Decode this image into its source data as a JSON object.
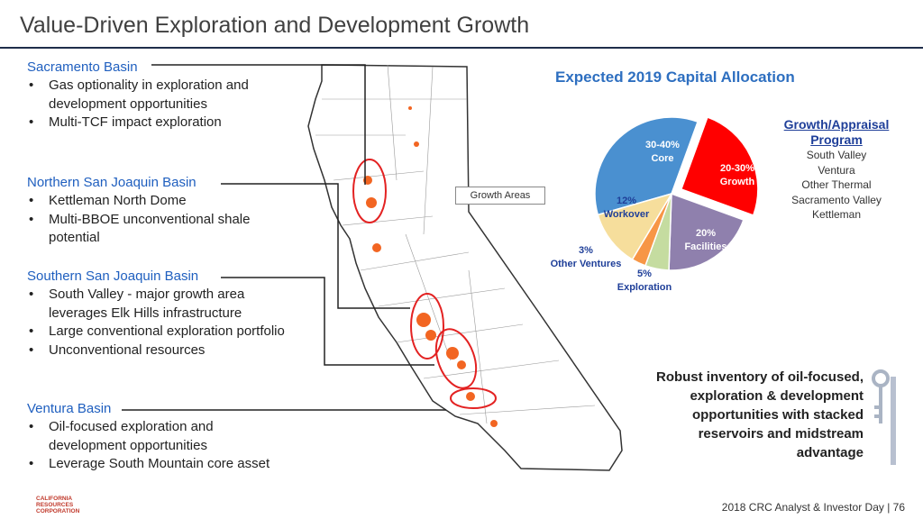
{
  "header": {
    "title": "Value-Driven Exploration and Development Growth"
  },
  "basins": [
    {
      "name": "Sacramento Basin",
      "bullets": [
        "Gas optionality in exploration and development opportunities",
        "Multi-TCF impact exploration"
      ]
    },
    {
      "name": "Northern San Joaquin Basin",
      "bullets": [
        "Kettleman North Dome",
        "Multi-BBOE unconventional shale potential"
      ]
    },
    {
      "name": "Southern San Joaquin Basin",
      "bullets": [
        "South Valley - major growth area leverages Elk Hills infrastructure",
        "Large conventional exploration portfolio",
        "Unconventional resources"
      ]
    },
    {
      "name": "Ventura Basin",
      "bullets": [
        "Oil-focused exploration and development opportunities",
        "Leverage South Mountain core asset"
      ]
    }
  ],
  "map": {
    "legend": "Growth Areas"
  },
  "pie": {
    "type": "pie",
    "title": "Expected 2019 Capital Allocation",
    "slices": [
      {
        "label": "Core",
        "value": 35,
        "value_label": "30-40%",
        "color": "#4a90d0"
      },
      {
        "label": "Growth",
        "value": 25,
        "value_label": "20-30%",
        "color": "#ff0000"
      },
      {
        "label": "Facilities",
        "value": 20,
        "value_label": "20%",
        "color": "#8f80ad"
      },
      {
        "label": "Exploration",
        "value": 5,
        "value_label": "5%",
        "color": "#c5dca0"
      },
      {
        "label": "Other Ventures",
        "value": 3,
        "value_label": "3%",
        "color": "#f79646"
      },
      {
        "label": "Workover",
        "value": 12,
        "value_label": "12%",
        "color": "#f6de9c"
      }
    ]
  },
  "program": {
    "title": "Growth/Appraisal Program",
    "items": [
      "South Valley",
      "Ventura",
      "Other Thermal",
      "Sacramento Valley",
      "Kettleman"
    ]
  },
  "callout": "Robust inventory of oil-focused, exploration & development opportunities with stacked reservoirs and midstream advantage",
  "logo": [
    "CALIFORNIA",
    "RESOURCES",
    "CORPORATION"
  ],
  "footer": "2018 CRC Analyst & Investor Day  |  76"
}
